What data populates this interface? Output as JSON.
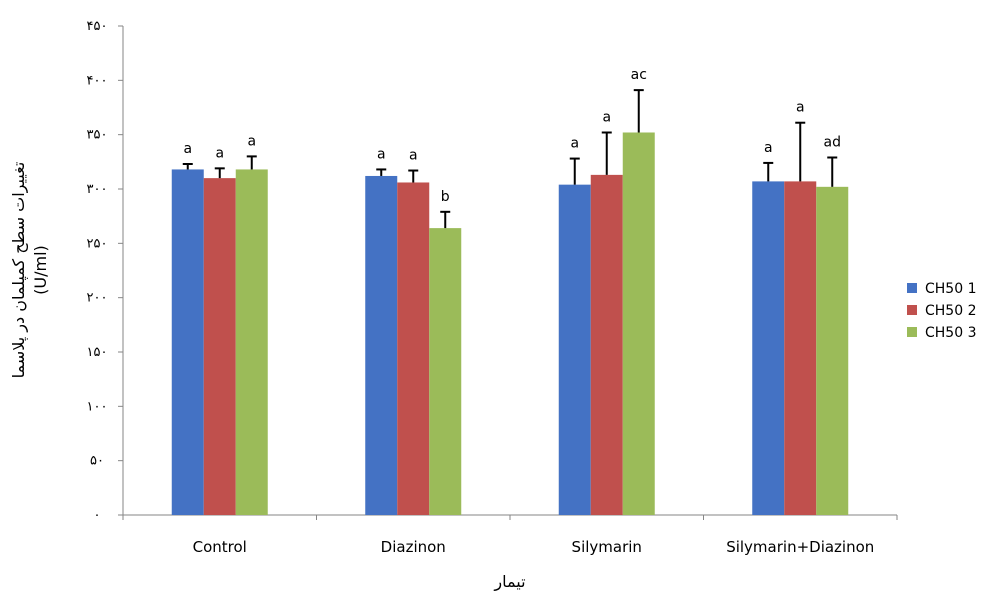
{
  "chart_data": {
    "type": "bar",
    "title": "",
    "xlabel": "تیمار",
    "ylabel": "تغییرات سطح کمپلمان در پلاسما",
    "ylabel_unit": "(U/ml)",
    "ylim": [
      0,
      450
    ],
    "ytick_values": [
      0,
      50,
      100,
      150,
      200,
      250,
      300,
      350,
      400,
      450
    ],
    "ytick_labels": [
      "۰",
      "۵۰",
      "۱۰۰",
      "۱۵۰",
      "۲۰۰",
      "۲۵۰",
      "۳۰۰",
      "۳۵۰",
      "۴۰۰",
      "۴۵۰"
    ],
    "categories": [
      "Control",
      "Diazinon",
      "Silymarin",
      "Silymarin+Diazinon"
    ],
    "legend_position": "right",
    "grid": false,
    "series": [
      {
        "name": "CH50 1",
        "color": "#4472C4",
        "values": [
          318,
          312,
          304,
          307
        ],
        "errors": [
          5,
          6,
          24,
          17
        ],
        "labels": [
          "a",
          "a",
          "a",
          "a"
        ]
      },
      {
        "name": "CH50 2",
        "color": "#C0504D",
        "values": [
          310,
          306,
          313,
          307
        ],
        "errors": [
          9,
          11,
          39,
          54
        ],
        "labels": [
          "a",
          "a",
          "a",
          "a"
        ]
      },
      {
        "name": "CH50 3",
        "color": "#9BBB59",
        "values": [
          318,
          264,
          352,
          302
        ],
        "errors": [
          12,
          15,
          39,
          27
        ],
        "labels": [
          "a",
          "b",
          "ac",
          "ad"
        ]
      }
    ]
  }
}
